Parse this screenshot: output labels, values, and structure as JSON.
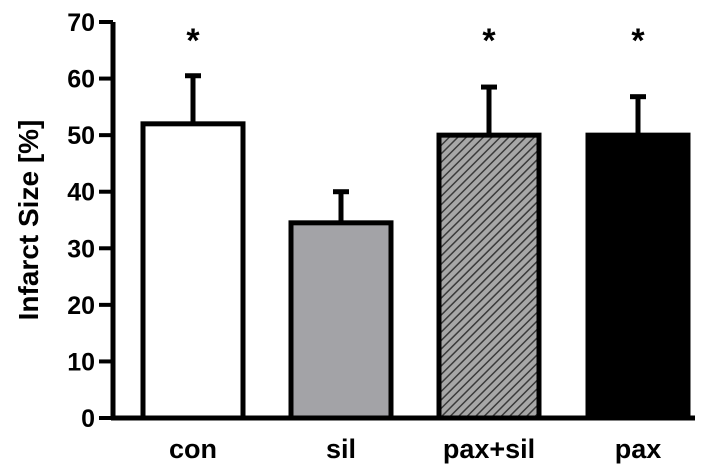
{
  "chart_data": {
    "type": "bar",
    "categories": [
      "con",
      "sil",
      "pax+sil",
      "pax"
    ],
    "values": [
      52,
      34.5,
      50,
      50
    ],
    "error_upper": [
      60.5,
      40,
      58.5,
      56.8
    ],
    "significance": [
      "*",
      "",
      "*",
      "*"
    ],
    "fills": [
      "white",
      "gray",
      "hatched",
      "black"
    ],
    "colors": {
      "white": "#ffffff",
      "gray": "#a3a3a7",
      "hatch_bg": "#a7a7a7",
      "hatch_line": "#3a3a3a",
      "black": "#000000"
    },
    "ylabel": "Infarct Size [%]",
    "xlabel": "",
    "ylim": [
      0,
      70
    ],
    "yticks": [
      0,
      10,
      20,
      30,
      40,
      50,
      60,
      70
    ],
    "grid": false,
    "legend": "none"
  }
}
